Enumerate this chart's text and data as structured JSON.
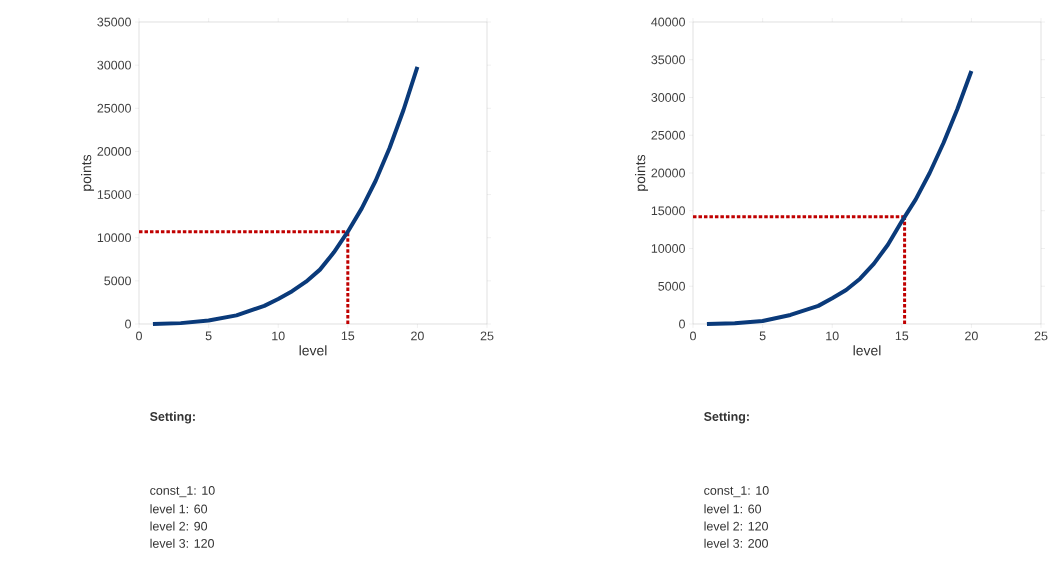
{
  "chart_data": [
    {
      "type": "line",
      "xlabel": "level",
      "ylabel": "points",
      "x": [
        1,
        3,
        5,
        7,
        9,
        10,
        11,
        12,
        13,
        14,
        15,
        16,
        17,
        18,
        19,
        20
      ],
      "series": [
        {
          "color": "#0a3a7a",
          "values": [
            0,
            100,
            400,
            1000,
            2100,
            2900,
            3800,
            4900,
            6300,
            8300,
            10700,
            13400,
            16600,
            20400,
            24800,
            29800
          ]
        }
      ],
      "xlim": [
        0,
        25
      ],
      "xticks": [
        0,
        5,
        10,
        15,
        20,
        25
      ],
      "ylim": [
        0,
        35000
      ],
      "yticks": [
        0,
        5000,
        10000,
        15000,
        20000,
        25000,
        30000,
        35000
      ],
      "ref_lines": [
        {
          "axis": "x",
          "value": 15,
          "color": "#c00000",
          "line_style": "dotted"
        },
        {
          "axis": "y",
          "value": 10700,
          "color": "#c00000",
          "line_style": "dotted"
        }
      ],
      "marker": "none",
      "annotations": [
        "Setting:",
        "const_1:  10",
        "level 1:    60",
        "level 2:    90",
        "level 3:    120"
      ]
    },
    {
      "type": "line",
      "xlabel": "level",
      "ylabel": "points",
      "x": [
        1,
        3,
        5,
        7,
        9,
        10,
        11,
        12,
        13,
        14,
        15,
        16,
        17,
        18,
        19,
        20
      ],
      "series": [
        {
          "color": "#0a3a7a",
          "values": [
            0,
            100,
            400,
            1200,
            2400,
            3400,
            4500,
            6000,
            8000,
            10500,
            13600,
            16500,
            20000,
            24000,
            28500,
            33500
          ]
        }
      ],
      "xlim": [
        0,
        25
      ],
      "xticks": [
        0,
        5,
        10,
        15,
        20,
        25
      ],
      "ylim": [
        0,
        40000
      ],
      "yticks": [
        0,
        5000,
        10000,
        15000,
        20000,
        25000,
        30000,
        35000,
        40000
      ],
      "ref_lines": [
        {
          "axis": "x",
          "value": 15.2,
          "color": "#c00000",
          "line_style": "dotted"
        },
        {
          "axis": "y",
          "value": 14200,
          "color": "#c00000",
          "line_style": "dotted"
        }
      ],
      "marker": "none",
      "annotations": [
        "Setting:",
        "const_1:  10",
        "level 1:    60",
        "level 2:    120",
        "level 3:    200"
      ]
    }
  ]
}
